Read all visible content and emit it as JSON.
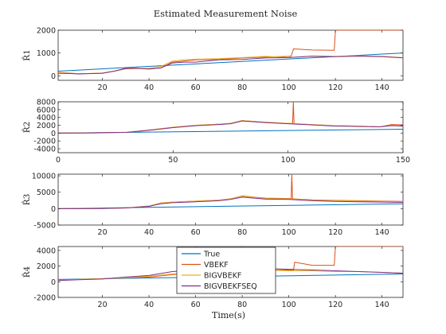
{
  "title": "Estimated Measurement Noise",
  "xlabel": "Time(s)",
  "colors": {
    "True": "#0072BD",
    "VBEKF": "#D95319",
    "BIGVBEKF": "#EDB120",
    "BIGVBEKFSEQ": "#7E2F8E",
    "axis": "#262626"
  },
  "legend": [
    "True",
    "VBEKF",
    "BIGVBEKF",
    "BIGVBEKFSEQ"
  ],
  "chart_data": [
    {
      "type": "line",
      "ylabel": "R̂1",
      "xlim": [
        1,
        149
      ],
      "ylim": [
        -200,
        2000
      ],
      "xticks": [
        20,
        40,
        60,
        80,
        100,
        120,
        140
      ],
      "yticks": [
        0,
        1000,
        2000
      ],
      "series": [
        {
          "name": "True",
          "x": [
            1,
            149
          ],
          "y": [
            200,
            1000
          ]
        },
        {
          "name": "VBEKF",
          "x": [
            1,
            5,
            10,
            20,
            25,
            30,
            35,
            40,
            45,
            50,
            55,
            60,
            70,
            80,
            90,
            100,
            101,
            102,
            110,
            119.5,
            120,
            125,
            130,
            140,
            149
          ],
          "y": [
            140,
            120,
            90,
            110,
            200,
            330,
            330,
            300,
            340,
            600,
            650,
            700,
            720,
            780,
            820,
            850,
            860,
            1180,
            1130,
            1120,
            2000,
            2000,
            2000,
            2000,
            2000
          ]
        },
        {
          "name": "BIGVBEKF",
          "x": [
            1,
            5,
            10,
            20,
            25,
            30,
            35,
            40,
            45,
            50,
            55,
            60,
            70,
            80,
            90,
            100,
            110,
            120,
            130,
            140,
            149
          ],
          "y": [
            130,
            110,
            90,
            120,
            200,
            300,
            320,
            330,
            400,
            650,
            700,
            730,
            750,
            800,
            850,
            800,
            860,
            850,
            880,
            850,
            800
          ]
        },
        {
          "name": "BIGVBEKFSEQ",
          "x": [
            1,
            5,
            10,
            20,
            25,
            30,
            35,
            40,
            45,
            50,
            55,
            60,
            70,
            80,
            90,
            100,
            110,
            120,
            130,
            140,
            149
          ],
          "y": [
            110,
            100,
            80,
            110,
            200,
            320,
            320,
            300,
            340,
            560,
            600,
            600,
            700,
            720,
            780,
            800,
            860,
            840,
            860,
            840,
            790
          ]
        }
      ]
    },
    {
      "type": "line",
      "ylabel": "R̂2",
      "xlim": [
        0,
        150
      ],
      "ylim": [
        -5000,
        8000
      ],
      "xticks": [
        0,
        50,
        100,
        150
      ],
      "yticks": [
        -4000,
        -2000,
        0,
        2000,
        4000,
        6000,
        8000
      ],
      "series": [
        {
          "name": "True",
          "x": [
            0,
            150
          ],
          "y": [
            0,
            1000
          ]
        },
        {
          "name": "VBEKF",
          "x": [
            0,
            10,
            20,
            30,
            40,
            50,
            60,
            70,
            75,
            80,
            85,
            90,
            100,
            102,
            102.3,
            102.6,
            103,
            110,
            120,
            130,
            140,
            145,
            150
          ],
          "y": [
            0,
            20,
            100,
            200,
            800,
            1500,
            2000,
            2300,
            2500,
            3200,
            3000,
            2800,
            2500,
            2500,
            8000,
            2400,
            2400,
            2200,
            1900,
            1800,
            1600,
            2200,
            2100
          ]
        },
        {
          "name": "BIGVBEKF",
          "x": [
            0,
            10,
            20,
            30,
            40,
            50,
            60,
            70,
            75,
            80,
            85,
            90,
            100,
            110,
            120,
            130,
            140,
            145,
            150
          ],
          "y": [
            0,
            20,
            100,
            200,
            800,
            1500,
            2000,
            2300,
            2500,
            3200,
            3000,
            2800,
            2500,
            2200,
            1900,
            1800,
            1600,
            2000,
            1900
          ]
        },
        {
          "name": "BIGVBEKFSEQ",
          "x": [
            0,
            10,
            20,
            30,
            40,
            50,
            60,
            70,
            75,
            80,
            85,
            90,
            100,
            110,
            120,
            130,
            140,
            145,
            150
          ],
          "y": [
            0,
            20,
            100,
            200,
            750,
            1400,
            1900,
            2200,
            2400,
            3100,
            2900,
            2700,
            2400,
            2100,
            1800,
            1700,
            1600,
            1900,
            1800
          ]
        }
      ]
    },
    {
      "type": "line",
      "ylabel": "R̂3",
      "xlim": [
        1,
        149
      ],
      "ylim": [
        -5000,
        10500
      ],
      "xticks": [
        20,
        40,
        60,
        80,
        100,
        120,
        140
      ],
      "yticks": [
        -5000,
        0,
        5000,
        10000
      ],
      "series": [
        {
          "name": "True",
          "x": [
            1,
            149
          ],
          "y": [
            0,
            1500
          ]
        },
        {
          "name": "VBEKF",
          "x": [
            1,
            10,
            20,
            30,
            40,
            45,
            50,
            60,
            70,
            75,
            80,
            85,
            90,
            100,
            101,
            101.3,
            101.6,
            102,
            110,
            120,
            130,
            140,
            149
          ],
          "y": [
            0,
            0,
            50,
            200,
            800,
            1700,
            2000,
            2300,
            2600,
            3000,
            3900,
            3500,
            3200,
            3100,
            3100,
            10500,
            3100,
            3000,
            2700,
            2500,
            2400,
            2300,
            2200
          ]
        },
        {
          "name": "BIGVBEKF",
          "x": [
            1,
            10,
            20,
            30,
            40,
            45,
            50,
            60,
            70,
            75,
            80,
            85,
            90,
            100,
            110,
            120,
            130,
            140,
            149
          ],
          "y": [
            0,
            0,
            50,
            200,
            800,
            1700,
            2000,
            2300,
            2600,
            3000,
            3800,
            3400,
            3100,
            3000,
            2600,
            2400,
            2300,
            2200,
            2100
          ]
        },
        {
          "name": "BIGVBEKFSEQ",
          "x": [
            1,
            10,
            20,
            30,
            40,
            45,
            50,
            60,
            70,
            75,
            80,
            85,
            90,
            100,
            110,
            120,
            130,
            140,
            149
          ],
          "y": [
            0,
            0,
            50,
            200,
            700,
            1500,
            1800,
            2100,
            2400,
            2800,
            3500,
            3200,
            2900,
            2800,
            2400,
            2200,
            2100,
            2000,
            1900
          ]
        }
      ]
    },
    {
      "type": "line",
      "ylabel": "R̂4",
      "xlim": [
        1,
        149
      ],
      "ylim": [
        -2000,
        4500
      ],
      "xticks": [
        20,
        40,
        60,
        80,
        100,
        120,
        140
      ],
      "yticks": [
        -2000,
        0,
        2000,
        4000
      ],
      "legend_location": "inside-top-center",
      "series": [
        {
          "name": "True",
          "x": [
            1,
            149
          ],
          "y": [
            300,
            1000
          ]
        },
        {
          "name": "VBEKF",
          "x": [
            1,
            10,
            20,
            30,
            40,
            50,
            60,
            70,
            80,
            90,
            100,
            101,
            102,
            102.5,
            110,
            119.5,
            120,
            125,
            130,
            149
          ],
          "y": [
            200,
            300,
            400,
            500,
            600,
            900,
            1200,
            1400,
            1500,
            1500,
            1500,
            1500,
            1500,
            2500,
            2100,
            2100,
            4500,
            4500,
            4500,
            4500
          ]
        },
        {
          "name": "BIGVBEKF",
          "x": [
            1,
            10,
            20,
            30,
            40,
            50,
            60,
            70,
            80,
            90,
            100,
            110,
            120,
            130,
            140,
            149
          ],
          "y": [
            200,
            300,
            400,
            500,
            700,
            1000,
            1200,
            1400,
            1500,
            1500,
            1400,
            1400,
            1300,
            1300,
            1200,
            1100
          ]
        },
        {
          "name": "BIGVBEKFSEQ",
          "x": [
            1,
            10,
            20,
            30,
            40,
            50,
            60,
            70,
            80,
            90,
            100,
            110,
            120,
            130,
            140,
            149
          ],
          "y": [
            150,
            250,
            350,
            600,
            800,
            1300,
            1500,
            1700,
            1800,
            1700,
            1600,
            1500,
            1400,
            1300,
            1200,
            1100
          ]
        }
      ]
    }
  ]
}
